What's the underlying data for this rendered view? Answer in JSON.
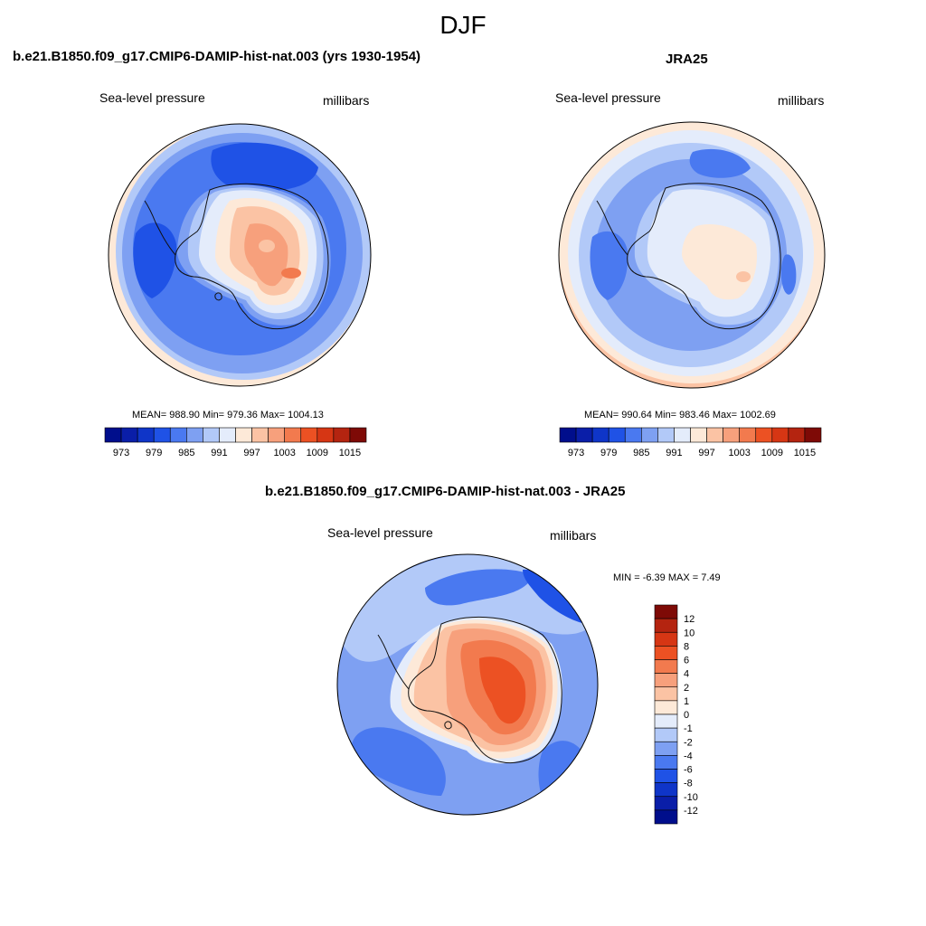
{
  "figure": {
    "title": "DJF"
  },
  "panels": [
    {
      "id": "model",
      "title": "b.e21.B1850.f09_g17.CMIP6-DAMIP-hist-nat.003 (yrs 1930-1954)",
      "variable": "Sea-level pressure",
      "units": "millibars",
      "stats": "MEAN= 988.90  Min= 979.36  Max= 1004.13"
    },
    {
      "id": "obs",
      "title": "JRA25",
      "variable": "Sea-level pressure",
      "units": "millibars",
      "stats": "MEAN= 990.64  Min= 983.46  Max= 1002.69"
    },
    {
      "id": "diff",
      "title": "b.e21.B1850.f09_g17.CMIP6-DAMIP-hist-nat.003 - JRA25",
      "variable": "Sea-level pressure",
      "units": "millibars",
      "stats": "MIN =  -6.39 MAX =   7.49"
    }
  ],
  "colorbars": {
    "abs": {
      "colors": [
        "#000e8c",
        "#0a1ea8",
        "#0f35c8",
        "#1f52e6",
        "#4a79f0",
        "#7ea0f2",
        "#b2c9f8",
        "#e4ecfb",
        "#fde9d8",
        "#fbc3a4",
        "#f7a07c",
        "#f27a4e",
        "#ec5123",
        "#d63614",
        "#b42410",
        "#7e0a06"
      ],
      "tick_labels": [
        "973",
        "979",
        "985",
        "991",
        "997",
        "1003",
        "1009",
        "1015"
      ]
    },
    "diff": {
      "colors": [
        "#7e0a06",
        "#b42410",
        "#d63614",
        "#ec5123",
        "#f27a4e",
        "#f7a07c",
        "#fbc3a4",
        "#fde9d8",
        "#e4ecfb",
        "#b2c9f8",
        "#7ea0f2",
        "#4a79f0",
        "#1f52e6",
        "#0f35c8",
        "#0a1ea8",
        "#000e8c"
      ],
      "tick_labels": [
        "12",
        "10",
        "8",
        "6",
        "4",
        "2",
        "1",
        "0",
        "-1",
        "-2",
        "-4",
        "-6",
        "-8",
        "-10",
        "-12"
      ]
    }
  }
}
